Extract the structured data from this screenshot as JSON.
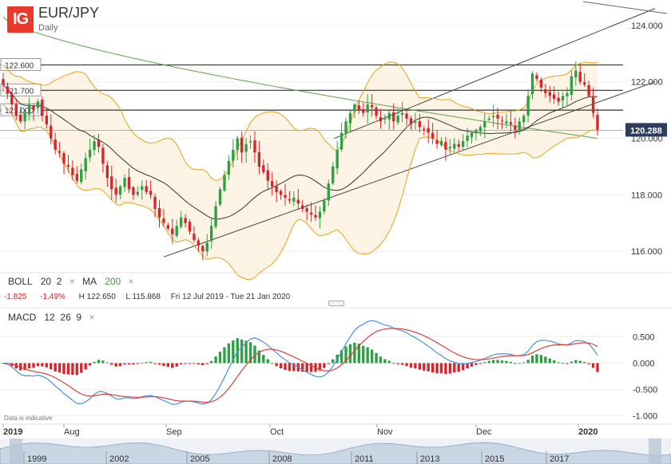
{
  "header": {
    "logo_text": "IG",
    "instrument": "EUR/JPY",
    "period": "Daily"
  },
  "indicators": {
    "boll_label": "BOLL",
    "boll_period": "20",
    "boll_dev": "2",
    "ma_label": "MA",
    "ma_period": "200",
    "remove_symbol": "×"
  },
  "stats": {
    "change": "-1.825",
    "change_pct": "-1.49%",
    "high": "H 122.650",
    "low": "L 115.868",
    "range": "Fri 12 Jul 2019 - Tue 21 Jan 2020"
  },
  "macd_header": {
    "label": "MACD",
    "fast": "12",
    "slow": "26",
    "signal": "9"
  },
  "footer": {
    "indicative": "Data is indicative",
    "year_start": "2019"
  },
  "colors": {
    "up": "#2ea043",
    "down": "#d6262b",
    "bollinger": "#e8a317",
    "ma200": "#58a34a",
    "macd_line": "#4a90d9",
    "signal_line": "#d94040",
    "current_price_bg": "#2b3d5b",
    "logo": "#e8392a"
  },
  "chart_data": [
    {
      "type": "candlestick",
      "title": "EUR/JPY",
      "subtitle": "Daily",
      "ylim": [
        115.3,
        124.9
      ],
      "y_ticks": [
        "116.000",
        "118.000",
        "120.000",
        "122.000",
        "124.000"
      ],
      "x_ticks": [
        "2019",
        "Aug",
        "Sep",
        "Oct",
        "Nov",
        "Dec",
        "2020"
      ],
      "current_price": "120.288",
      "horizontal_levels": [
        {
          "label": "122.600",
          "value": 122.6
        },
        {
          "label": "121.700",
          "value": 121.7
        },
        {
          "label": "121.000",
          "value": 121.0
        },
        {
          "label": "",
          "value": 120.28
        }
      ],
      "trendlines": [
        {
          "name": "lower channel",
          "from": [
            2,
            115.8
          ],
          "to": [
            146,
            122.0
          ]
        },
        {
          "name": "upper channel",
          "from": [
            52,
            120.0
          ],
          "to": [
            146,
            124.6
          ]
        }
      ],
      "closes": [
        121.9,
        121.6,
        121.2,
        120.8,
        120.6,
        120.9,
        121.2,
        121.0,
        121.3,
        120.8,
        120.5,
        120.0,
        119.6,
        119.5,
        119.1,
        119.0,
        118.7,
        118.5,
        118.9,
        119.3,
        119.6,
        119.9,
        119.7,
        119.1,
        118.6,
        118.2,
        118.0,
        118.3,
        118.6,
        118.2,
        118.0,
        118.1,
        118.3,
        118.1,
        118.0,
        117.5,
        117.2,
        117.0,
        116.8,
        116.6,
        116.9,
        117.2,
        117.0,
        116.7,
        116.4,
        116.2,
        116.0,
        116.3,
        116.9,
        117.6,
        118.2,
        118.7,
        119.2,
        119.6,
        120.0,
        119.5,
        119.8,
        119.9,
        119.5,
        119.0,
        118.8,
        118.5,
        118.3,
        118.1,
        118.0,
        117.9,
        117.8,
        117.9,
        117.7,
        117.5,
        117.4,
        117.3,
        117.2,
        117.4,
        117.8,
        118.4,
        119.0,
        119.6,
        120.2,
        120.6,
        120.9,
        121.2,
        121.0,
        120.9,
        121.2,
        121.1,
        120.8,
        120.6,
        120.7,
        120.9,
        120.6,
        120.8,
        120.9,
        120.7,
        120.5,
        120.6,
        120.4,
        120.3,
        120.2,
        120.0,
        119.8,
        119.9,
        119.6,
        119.7,
        119.8,
        119.7,
        119.9,
        120.1,
        120.2,
        120.3,
        120.4,
        120.6,
        120.7,
        120.8,
        120.7,
        120.6,
        120.6,
        120.5,
        120.3,
        120.6,
        120.8,
        121.5,
        122.3,
        122.1,
        121.8,
        121.6,
        121.5,
        121.4,
        121.3,
        121.5,
        121.6,
        122.2,
        122.4,
        122.0,
        121.9,
        121.5,
        120.9,
        120.3
      ],
      "bollinger": {
        "period": 20,
        "deviation": 2
      },
      "ma": {
        "period": 200
      }
    },
    {
      "type": "bar+line",
      "title": "MACD",
      "ylim": [
        -1.1,
        0.72
      ],
      "y_ticks": [
        "0.500",
        "0.000",
        "-0.500",
        "-1.000"
      ],
      "series": [
        {
          "name": "MACD",
          "type": "line"
        },
        {
          "name": "Signal",
          "type": "line"
        },
        {
          "name": "Histogram",
          "type": "bar"
        }
      ]
    }
  ],
  "navigator": {
    "years": [
      "1999",
      "2002",
      "2005",
      "2008",
      "2011",
      "2013",
      "2015",
      "2017"
    ]
  }
}
